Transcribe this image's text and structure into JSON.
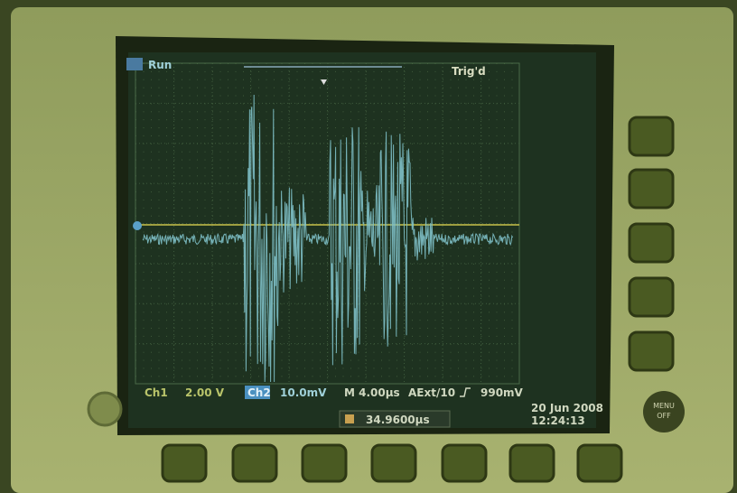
{
  "screen": {
    "status": "Run",
    "trigger_status": "Trig'd",
    "ch1_label": "Ch1",
    "ch1_scale": "2.00 V",
    "ch2_label": "Ch2",
    "ch2_scale": "10.0mV",
    "timebase": "M 4.00µs",
    "trigger_source": "AExt/10",
    "trigger_level": "990mV",
    "cursor_time": "34.9600µs",
    "date": "20 Jun 2008",
    "time": "12:24:13"
  },
  "buttons": {
    "menu": "MENU",
    "menu_sub": "OFF"
  }
}
